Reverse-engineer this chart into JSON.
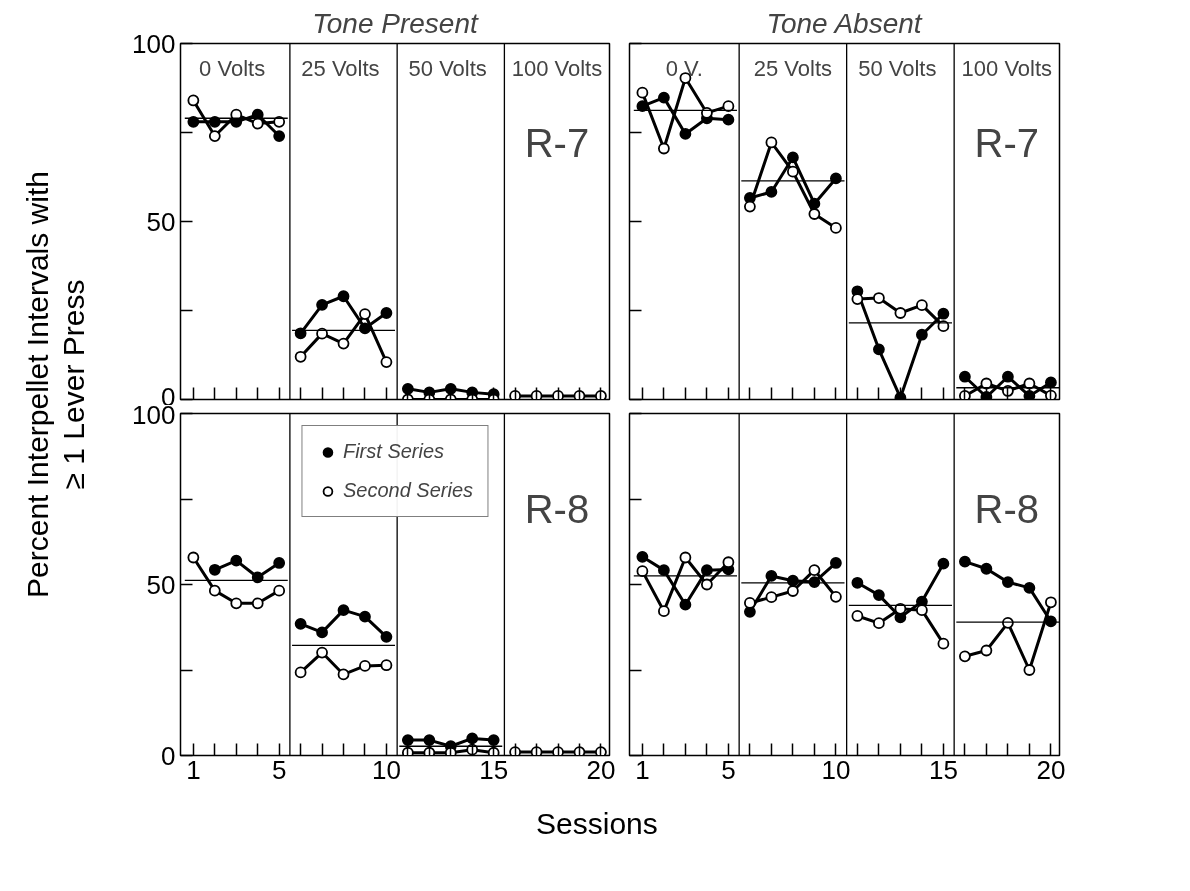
{
  "chart_data": [
    {
      "type": "line",
      "title": "Tone Present",
      "ylabel": "Percent Interpellet Intervals with\n≥ 1 Lever Press",
      "marker": "circle",
      "tick_labels": "y",
      "xlim": [
        0.4,
        20.4
      ],
      "ylim": [
        0,
        100
      ],
      "xticks": [
        {
          "value": 1,
          "label": null
        },
        {
          "value": 2,
          "label": null
        },
        {
          "value": 3,
          "label": null
        },
        {
          "value": 4,
          "label": null
        },
        {
          "value": 5,
          "label": null
        },
        {
          "value": 6,
          "label": null
        },
        {
          "value": 7,
          "label": null
        },
        {
          "value": 8,
          "label": null
        },
        {
          "value": 9,
          "label": null
        },
        {
          "value": 10,
          "label": null
        },
        {
          "value": 11,
          "label": null
        },
        {
          "value": 12,
          "label": null
        },
        {
          "value": 13,
          "label": null
        },
        {
          "value": 14,
          "label": null
        },
        {
          "value": 15,
          "label": null
        },
        {
          "value": 16,
          "label": null
        },
        {
          "value": 17,
          "label": null
        },
        {
          "value": 18,
          "label": null
        },
        {
          "value": 19,
          "label": null
        },
        {
          "value": 20,
          "label": null
        }
      ],
      "yticks": [
        0,
        {
          "value": 25,
          "label": null
        },
        50,
        {
          "value": 75,
          "label": null
        },
        100
      ],
      "x": [
        1,
        2,
        3,
        4,
        5,
        6,
        7,
        8,
        9,
        10,
        11,
        12,
        13,
        14,
        15,
        16,
        17,
        18,
        19,
        20
      ],
      "series": [
        {
          "color": "#000000",
          "values": [
            78,
            78,
            78,
            80,
            74,
            18.6,
            26.6,
            29,
            20,
            24.3,
            3,
            2,
            3,
            2,
            1.5,
            null,
            null,
            null,
            null,
            null
          ]
        },
        {
          "color": "#000000",
          "values": [
            84,
            74,
            80,
            77.5,
            78,
            12,
            18.5,
            15.7,
            24,
            10.5,
            0,
            0,
            0,
            0,
            0,
            1,
            1,
            1,
            1,
            1
          ]
        },
        {
          "color": "#000000",
          "marker": "none",
          "x": [
            0.6,
            5.4
          ],
          "values": [
            79,
            79
          ]
        },
        {
          "color": "#000000",
          "marker": "none",
          "x": [
            5.6,
            10.4
          ],
          "values": [
            19.4,
            19.4
          ]
        }
      ],
      "ref_lines": [
        {
          "axis": "x",
          "value": 5.5,
          "color": "#000000"
        },
        {
          "axis": "x",
          "value": 10.5,
          "color": "#000000"
        },
        {
          "axis": "x",
          "value": 15.5,
          "color": "#000000"
        }
      ],
      "annotations": [
        "0  Volts",
        "25  Volts",
        "50  Volts",
        "100 Volts",
        "R-7"
      ]
    },
    {
      "type": "line",
      "title": "Tone Absent",
      "marker": "circle",
      "tick_labels": false,
      "xlim": [
        0.4,
        20.4
      ],
      "ylim": [
        0,
        100
      ],
      "xticks": [
        {
          "value": 1,
          "label": null
        },
        {
          "value": 2,
          "label": null
        },
        {
          "value": 3,
          "label": null
        },
        {
          "value": 4,
          "label": null
        },
        {
          "value": 5,
          "label": null
        },
        {
          "value": 6,
          "label": null
        },
        {
          "value": 7,
          "label": null
        },
        {
          "value": 8,
          "label": null
        },
        {
          "value": 9,
          "label": null
        },
        {
          "value": 10,
          "label": null
        },
        {
          "value": 11,
          "label": null
        },
        {
          "value": 12,
          "label": null
        },
        {
          "value": 13,
          "label": null
        },
        {
          "value": 14,
          "label": null
        },
        {
          "value": 15,
          "label": null
        },
        {
          "value": 16,
          "label": null
        },
        {
          "value": 17,
          "label": null
        },
        {
          "value": 18,
          "label": null
        },
        {
          "value": 19,
          "label": null
        },
        {
          "value": 20,
          "label": null
        }
      ],
      "yticks": [
        {
          "value": 0,
          "label": null
        },
        {
          "value": 25,
          "label": null
        },
        {
          "value": 50,
          "label": null
        },
        {
          "value": 75,
          "label": null
        },
        {
          "value": 100,
          "label": null
        }
      ],
      "x": [
        1,
        2,
        3,
        4,
        5,
        6,
        7,
        8,
        9,
        10,
        11,
        12,
        13,
        14,
        15,
        16,
        17,
        18,
        19,
        20
      ],
      "series": [
        {
          "color": "#000000",
          "values": [
            82.4,
            84.8,
            74.6,
            79,
            78.6,
            56.6,
            58.3,
            68,
            55,
            62.1,
            30.4,
            14.1,
            0.5,
            18.2,
            24.1,
            6.4,
            0.7,
            6.4,
            1,
            4.8
          ]
        },
        {
          "color": "#000000",
          "values": [
            86.2,
            70.5,
            90.3,
            80.5,
            82.4,
            54.2,
            72.2,
            64,
            52.1,
            48.2,
            28.2,
            28.5,
            24.3,
            26.5,
            20.6,
            1,
            4.5,
            2.4,
            4.5,
            1.1
          ]
        },
        {
          "color": "#000000",
          "marker": "none",
          "x": [
            0.6,
            5.4
          ],
          "values": [
            81.2,
            81.2
          ]
        },
        {
          "color": "#000000",
          "marker": "none",
          "x": [
            5.6,
            10.4
          ],
          "values": [
            61.4,
            61.4
          ]
        },
        {
          "color": "#000000",
          "marker": "none",
          "x": [
            10.6,
            15.4
          ],
          "values": [
            21.5,
            21.5
          ]
        },
        {
          "color": "#000000",
          "marker": "none",
          "x": [
            15.6,
            20.4
          ],
          "values": [
            3.3,
            3.3
          ]
        }
      ],
      "ref_lines": [
        {
          "axis": "x",
          "value": 5.5,
          "color": "#000000"
        },
        {
          "axis": "x",
          "value": 10.5,
          "color": "#000000"
        },
        {
          "axis": "x",
          "value": 15.5,
          "color": "#000000"
        }
      ],
      "annotations": [
        "0 V.",
        "25 Volts",
        "50  Volts",
        "100 Volts",
        "R-7"
      ]
    },
    {
      "type": "line",
      "xlabel": "Sessions",
      "marker": "circle",
      "legend": "top",
      "xlim": [
        0.4,
        20.4
      ],
      "ylim": [
        0,
        100
      ],
      "xticks": [
        1,
        {
          "value": 2,
          "label": null
        },
        {
          "value": 3,
          "label": null
        },
        {
          "value": 4,
          "label": null
        },
        5,
        {
          "value": 6,
          "label": null
        },
        {
          "value": 7,
          "label": null
        },
        {
          "value": 8,
          "label": null
        },
        {
          "value": 9,
          "label": null
        },
        10,
        {
          "value": 11,
          "label": null
        },
        {
          "value": 12,
          "label": null
        },
        {
          "value": 13,
          "label": null
        },
        {
          "value": 14,
          "label": null
        },
        15,
        {
          "value": 16,
          "label": null
        },
        {
          "value": 17,
          "label": null
        },
        {
          "value": 18,
          "label": null
        },
        {
          "value": 19,
          "label": null
        },
        20
      ],
      "yticks": [
        0,
        {
          "value": 25,
          "label": null
        },
        50,
        {
          "value": 75,
          "label": null
        },
        100
      ],
      "x": [
        1,
        2,
        3,
        4,
        5,
        6,
        7,
        8,
        9,
        10,
        11,
        12,
        13,
        14,
        15,
        16,
        17,
        18,
        19,
        20
      ],
      "series": [
        {
          "name": "First Series",
          "color": "#000000",
          "values": [
            null,
            54.3,
            57,
            52.1,
            56.3,
            38.5,
            36,
            42.5,
            40.6,
            34.7,
            4.5,
            4.5,
            2.7,
            5,
            4.5,
            null,
            null,
            null,
            null,
            null
          ]
        },
        {
          "name": "Second Series",
          "color": "#000000",
          "values": [
            57.9,
            48.2,
            44.5,
            44.5,
            48.2,
            24.3,
            30.1,
            23.7,
            26.2,
            26.4,
            0.8,
            0.8,
            0.8,
            1.7,
            0.8,
            1,
            1,
            1,
            1,
            1
          ]
        },
        {
          "color": "#000000",
          "marker": "none",
          "x": [
            0.6,
            5.4
          ],
          "values": [
            51.2,
            51.2
          ]
        },
        {
          "color": "#000000",
          "marker": "none",
          "x": [
            5.6,
            10.4
          ],
          "values": [
            32.2,
            32.2
          ]
        },
        {
          "color": "#000000",
          "marker": "none",
          "x": [
            10.6,
            15.4
          ],
          "values": [
            2.7,
            2.7
          ]
        }
      ],
      "ref_lines": [
        {
          "axis": "x",
          "value": 5.5,
          "color": "#000000"
        },
        {
          "axis": "x",
          "value": 10.5,
          "color": "#000000"
        },
        {
          "axis": "x",
          "value": 15.5,
          "color": "#000000"
        }
      ],
      "annotations": [
        "R-8"
      ]
    },
    {
      "type": "line",
      "marker": "circle",
      "tick_labels": "x",
      "xlim": [
        0.4,
        20.4
      ],
      "ylim": [
        0,
        100
      ],
      "xticks": [
        1,
        {
          "value": 2,
          "label": null
        },
        {
          "value": 3,
          "label": null
        },
        {
          "value": 4,
          "label": null
        },
        5,
        {
          "value": 6,
          "label": null
        },
        {
          "value": 7,
          "label": null
        },
        {
          "value": 8,
          "label": null
        },
        {
          "value": 9,
          "label": null
        },
        10,
        {
          "value": 11,
          "label": null
        },
        {
          "value": 12,
          "label": null
        },
        {
          "value": 13,
          "label": null
        },
        {
          "value": 14,
          "label": null
        },
        15,
        {
          "value": 16,
          "label": null
        },
        {
          "value": 17,
          "label": null
        },
        {
          "value": 18,
          "label": null
        },
        {
          "value": 19,
          "label": null
        },
        20
      ],
      "yticks": [
        {
          "value": 0,
          "label": null
        },
        {
          "value": 25,
          "label": null
        },
        {
          "value": 50,
          "label": null
        },
        {
          "value": 75,
          "label": null
        },
        {
          "value": 100,
          "label": null
        }
      ],
      "x": [
        1,
        2,
        3,
        4,
        5,
        6,
        7,
        8,
        9,
        10,
        11,
        12,
        13,
        14,
        15,
        16,
        17,
        18,
        19,
        20
      ],
      "series": [
        {
          "color": "#000000",
          "values": [
            58.1,
            54.2,
            44.1,
            54.2,
            54.4,
            42,
            52.5,
            51.1,
            50.7,
            56.3,
            50.5,
            46.9,
            40.4,
            45,
            56.1,
            56.7,
            54.6,
            50.7,
            49,
            39.2
          ]
        },
        {
          "color": "#000000",
          "values": [
            53.9,
            42.2,
            57.9,
            50,
            56.5,
            44.6,
            46.3,
            48.1,
            54.2,
            46.4,
            40.8,
            38.7,
            42.9,
            42.5,
            32.7,
            29,
            30.7,
            38.8,
            25,
            44.8
          ]
        },
        {
          "color": "#000000",
          "marker": "none",
          "x": [
            0.6,
            5.4
          ],
          "values": [
            52.5,
            52.5
          ]
        },
        {
          "color": "#000000",
          "marker": "none",
          "x": [
            5.6,
            10.4
          ],
          "values": [
            50.5,
            50.5
          ]
        },
        {
          "color": "#000000",
          "marker": "none",
          "x": [
            10.6,
            15.4
          ],
          "values": [
            43.9,
            43.9
          ]
        },
        {
          "color": "#000000",
          "marker": "none",
          "x": [
            15.6,
            20.4
          ],
          "values": [
            39,
            39
          ]
        }
      ],
      "ref_lines": [
        {
          "axis": "x",
          "value": 5.5,
          "color": "#000000"
        },
        {
          "axis": "x",
          "value": 10.5,
          "color": "#000000"
        },
        {
          "axis": "x",
          "value": 15.5,
          "color": "#000000"
        }
      ],
      "annotations": [
        "R-8"
      ]
    }
  ]
}
